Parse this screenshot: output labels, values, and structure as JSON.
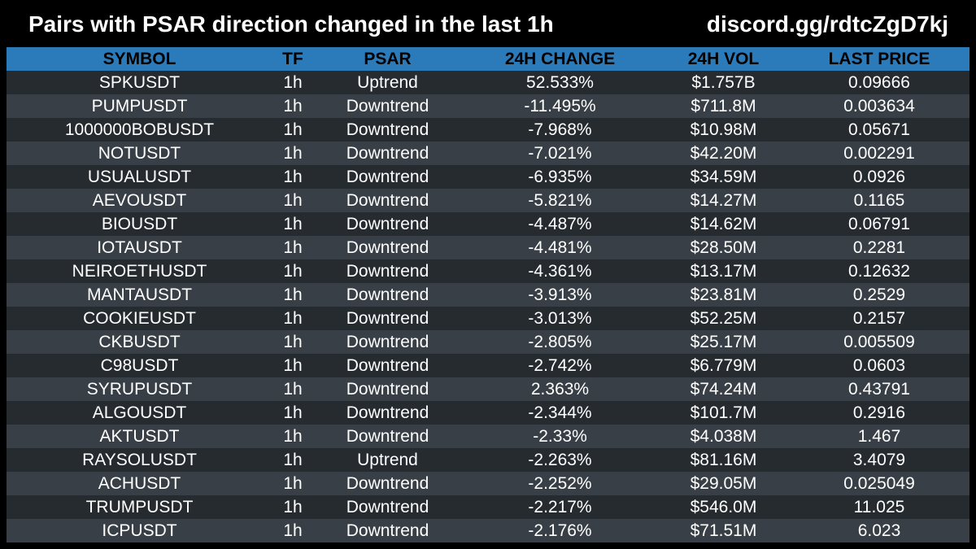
{
  "header": {
    "title": "Pairs with PSAR direction changed in the last 1h",
    "link": "discord.gg/rdtcZgD7kj"
  },
  "table": {
    "columns": [
      "SYMBOL",
      "TF",
      "PSAR",
      "24H CHANGE",
      "24H VOL",
      "LAST PRICE"
    ],
    "rows": [
      [
        "SPKUSDT",
        "1h",
        "Uptrend",
        "52.533%",
        "$1.757B",
        "0.09666"
      ],
      [
        "PUMPUSDT",
        "1h",
        "Downtrend",
        "-11.495%",
        "$711.8M",
        "0.003634"
      ],
      [
        "1000000BOBUSDT",
        "1h",
        "Downtrend",
        "-7.968%",
        "$10.98M",
        "0.05671"
      ],
      [
        "NOTUSDT",
        "1h",
        "Downtrend",
        "-7.021%",
        "$42.20M",
        "0.002291"
      ],
      [
        "USUALUSDT",
        "1h",
        "Downtrend",
        "-6.935%",
        "$34.59M",
        "0.0926"
      ],
      [
        "AEVOUSDT",
        "1h",
        "Downtrend",
        "-5.821%",
        "$14.27M",
        "0.1165"
      ],
      [
        "BIOUSDT",
        "1h",
        "Downtrend",
        "-4.487%",
        "$14.62M",
        "0.06791"
      ],
      [
        "IOTAUSDT",
        "1h",
        "Downtrend",
        "-4.481%",
        "$28.50M",
        "0.2281"
      ],
      [
        "NEIROETHUSDT",
        "1h",
        "Downtrend",
        "-4.361%",
        "$13.17M",
        "0.12632"
      ],
      [
        "MANTAUSDT",
        "1h",
        "Downtrend",
        "-3.913%",
        "$23.81M",
        "0.2529"
      ],
      [
        "COOKIEUSDT",
        "1h",
        "Downtrend",
        "-3.013%",
        "$52.25M",
        "0.2157"
      ],
      [
        "CKBUSDT",
        "1h",
        "Downtrend",
        "-2.805%",
        "$25.17M",
        "0.005509"
      ],
      [
        "C98USDT",
        "1h",
        "Downtrend",
        "-2.742%",
        "$6.779M",
        "0.0603"
      ],
      [
        "SYRUPUSDT",
        "1h",
        "Downtrend",
        "2.363%",
        "$74.24M",
        "0.43791"
      ],
      [
        "ALGOUSDT",
        "1h",
        "Downtrend",
        "-2.344%",
        "$101.7M",
        "0.2916"
      ],
      [
        "AKTUSDT",
        "1h",
        "Downtrend",
        "-2.33%",
        "$4.038M",
        "1.467"
      ],
      [
        "RAYSOLUSDT",
        "1h",
        "Uptrend",
        "-2.263%",
        "$81.16M",
        "3.4079"
      ],
      [
        "ACHUSDT",
        "1h",
        "Downtrend",
        "-2.252%",
        "$29.05M",
        "0.025049"
      ],
      [
        "TRUMPUSDT",
        "1h",
        "Downtrend",
        "-2.217%",
        "$546.0M",
        "11.025"
      ],
      [
        "ICPUSDT",
        "1h",
        "Downtrend",
        "-2.176%",
        "$71.51M",
        "6.023"
      ]
    ]
  },
  "colors": {
    "background": "#000000",
    "header_row": "#2b7bba",
    "row_dark": "#262b30",
    "row_light": "#383f46",
    "text": "#ffffff",
    "header_text": "#000000"
  }
}
